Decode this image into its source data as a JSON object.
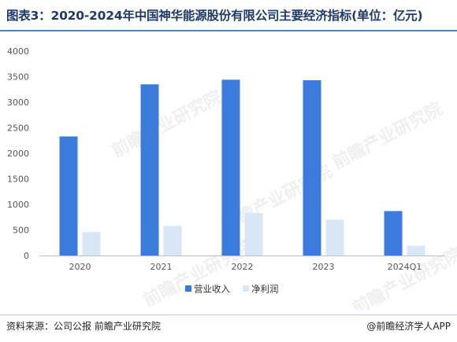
{
  "title": "图表3：2020-2024年中国神华能源股份有限公司主要经济指标(单位：亿元)",
  "source": "资料来源：公司公报 前瞻产业研究院",
  "brand": "@前瞻经济学人APP",
  "watermark": "前瞻产业研究院",
  "colors": {
    "revenue": "#3a7bdc",
    "profit": "#d8e6f6",
    "axis": "#bfbfbf",
    "tick_text": "#555555"
  },
  "chart_data": {
    "type": "bar",
    "categories": [
      "2020",
      "2021",
      "2022",
      "2023",
      "2024Q1"
    ],
    "series": [
      {
        "name": "营业收入",
        "values": [
          2330,
          3350,
          3440,
          3430,
          870
        ]
      },
      {
        "name": "净利润",
        "values": [
          460,
          580,
          830,
          700,
          190
        ]
      }
    ],
    "ylim": [
      0,
      4000
    ],
    "yticks": [
      0,
      500,
      1000,
      1500,
      2000,
      2500,
      3000,
      3500,
      4000
    ],
    "grid": false,
    "legend": "bottom-center"
  }
}
